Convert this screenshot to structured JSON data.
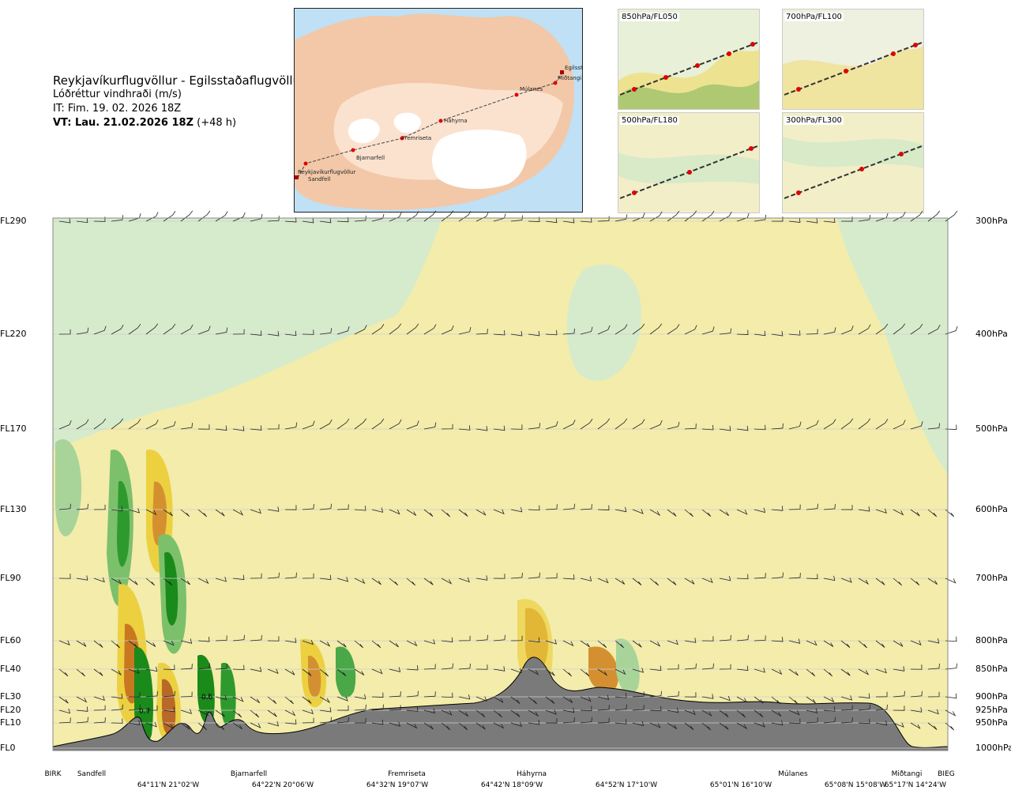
{
  "title": {
    "route": "Reykjavíkurflugvöllur - Egilsstaðaflugvöllur",
    "variable": "Lóðréttur vindhraði (m/s)",
    "issue_time": "IT: Fim. 19. 02. 2026 18Z",
    "valid_label": "VT: Lau. 21.02.2026 18Z",
    "valid_offset": "(+48 h)"
  },
  "map": {
    "route_points": [
      "Reykjavíkurflugvöllur",
      "Sandfell",
      "Bjarnarfell",
      "Fremriseta",
      "Háhyrna",
      "Múlanes",
      "Miðtangi",
      "Egilsst"
    ]
  },
  "thumbnails": [
    {
      "label": "850hPa/FL050"
    },
    {
      "label": "700hPa/FL100"
    },
    {
      "label": "500hPa/FL180"
    },
    {
      "label": "300hPa/FL300"
    }
  ],
  "levels": [
    {
      "fl": "FL290",
      "hpa": "300hPa"
    },
    {
      "fl": "FL220",
      "hpa": "400hPa"
    },
    {
      "fl": "FL170",
      "hpa": "500hPa"
    },
    {
      "fl": "FL130",
      "hpa": "600hPa"
    },
    {
      "fl": "FL90",
      "hpa": "700hPa"
    },
    {
      "fl": "FL60",
      "hpa": "800hPa"
    },
    {
      "fl": "FL40",
      "hpa": "850hPa"
    },
    {
      "fl": "FL30",
      "hpa": "900hPa"
    },
    {
      "fl": "FL20",
      "hpa": "925hPa"
    },
    {
      "fl": "FL10",
      "hpa": "950hPa"
    },
    {
      "fl": "FL0",
      "hpa": "1000hPa"
    }
  ],
  "bottom_axis": {
    "places": [
      "BIRK",
      "Sandfell",
      "Bjarnarfell",
      "Fremriseta",
      "Háhyrna",
      "Múlanes",
      "Miðtangi",
      "BIEG"
    ],
    "coords": [
      "64°11'N 21°02'W",
      "64°22'N 20°06'W",
      "64°32'N 19°07'W",
      "64°42'N 18°09'W",
      "64°52'N 17°10'W",
      "65°01'N 16°10'W",
      "65°08'N 15°08'W",
      "65°17'N 14°24'W"
    ]
  },
  "annotations": [
    "0.7",
    "0.6"
  ],
  "colors": {
    "weak_up": "#f5eeb0",
    "moderate_up": "#e8c830",
    "strong_up": "#c87820",
    "weak_down": "#d8ecd0",
    "moderate_down": "#8cc878",
    "strong_down": "#1a8a1a",
    "terrain": "#7a7a7a"
  },
  "chart_data": {
    "type": "heatmap",
    "title": "Lóðréttur vindhraði (m/s)",
    "xlabel": "",
    "ylabel": "",
    "y_levels_hpa": [
      300,
      400,
      500,
      600,
      700,
      800,
      850,
      900,
      925,
      950,
      1000
    ],
    "annotations": [
      {
        "text": "0.7",
        "near": "Sandfell"
      },
      {
        "text": "0.6",
        "near": "Sandfell–Bjarnarfell"
      }
    ]
  }
}
